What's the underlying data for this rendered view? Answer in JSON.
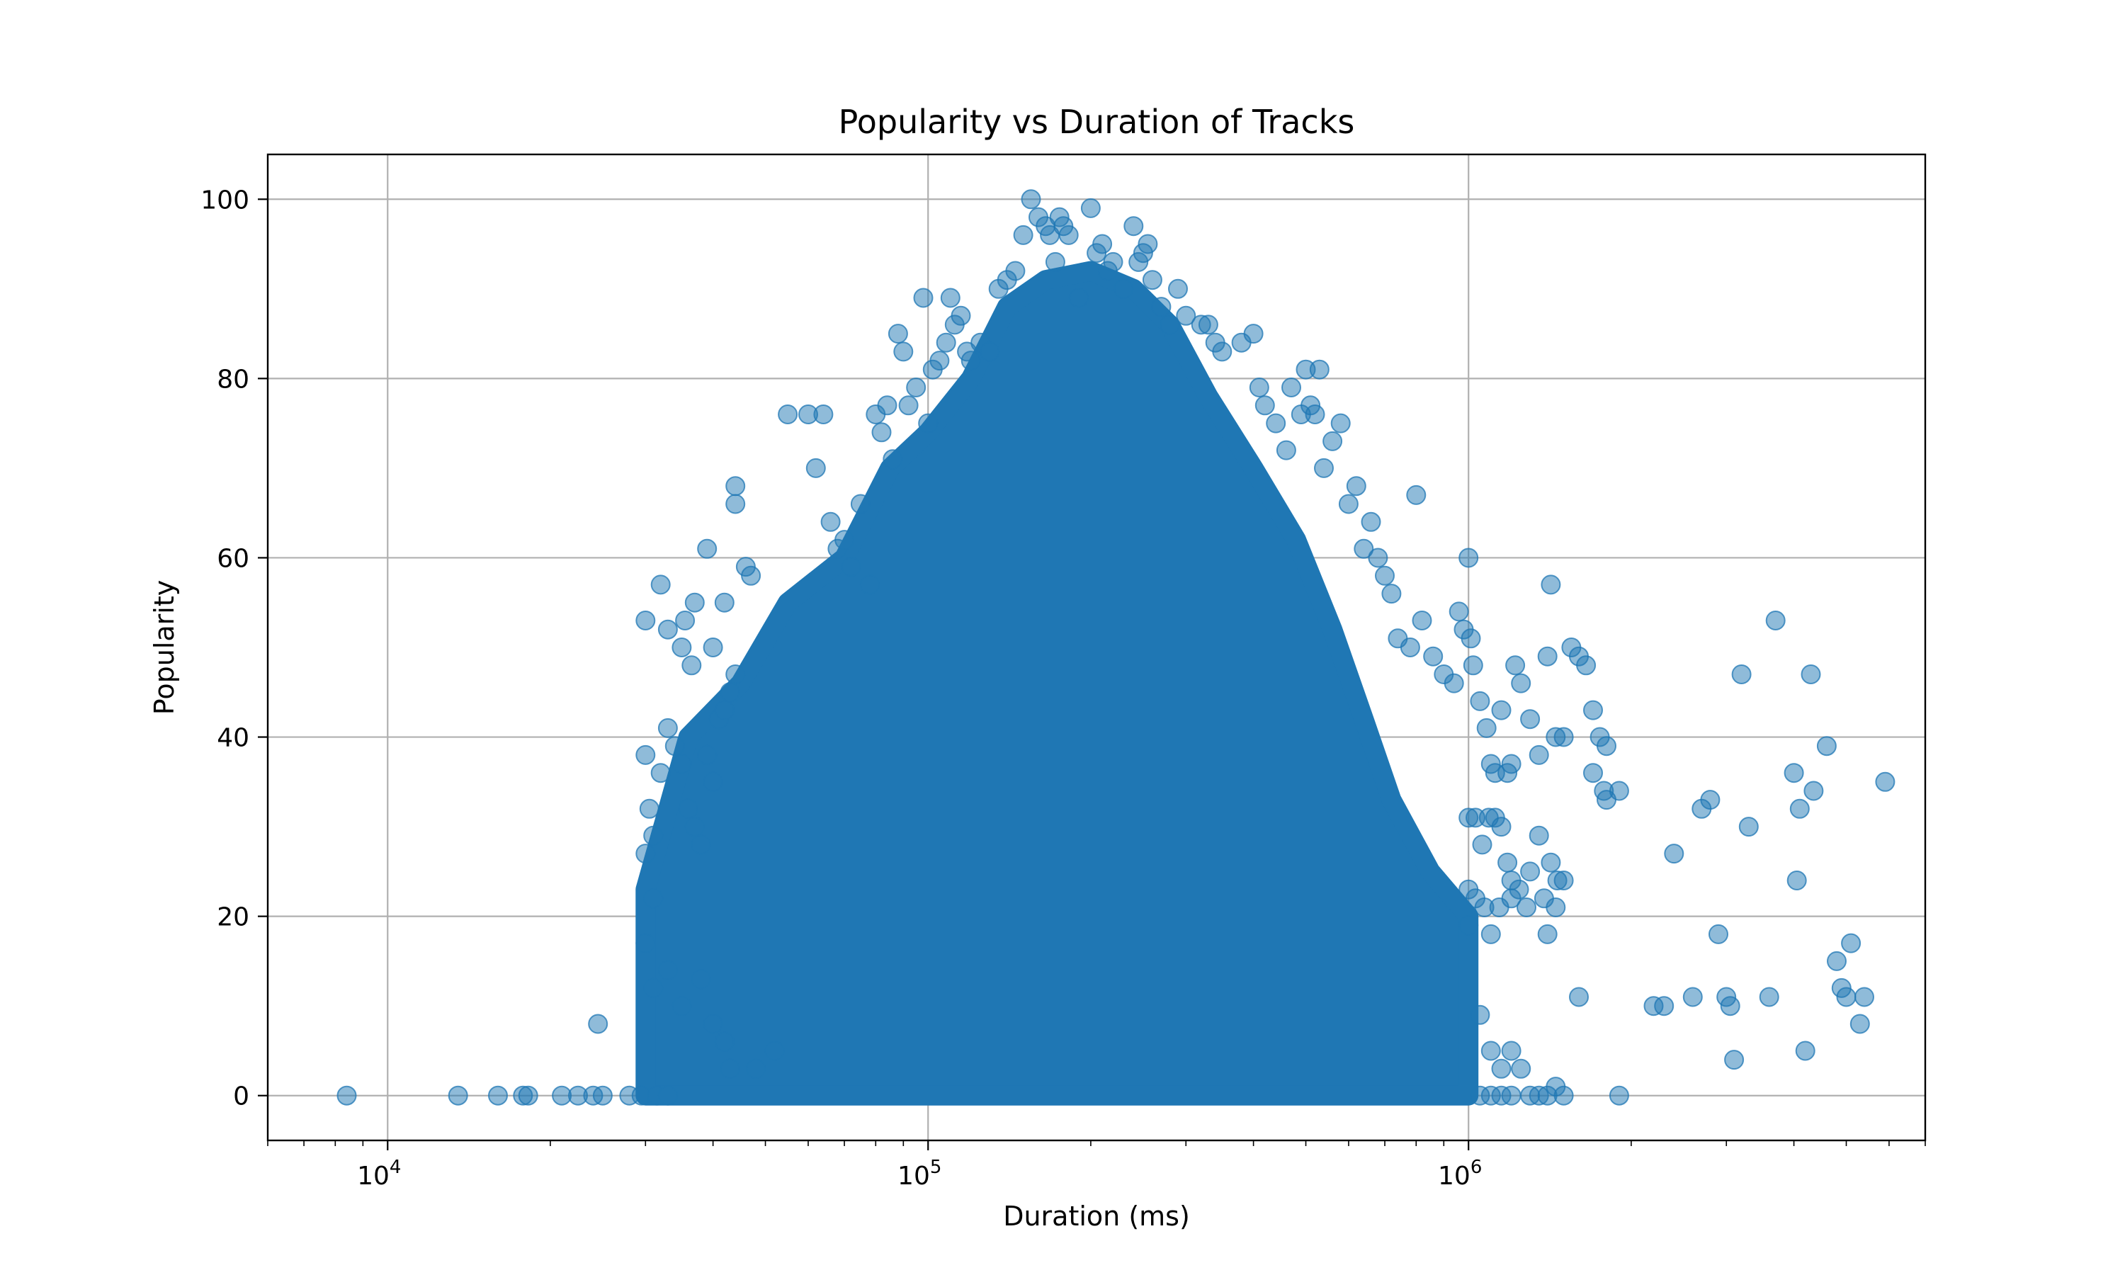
{
  "chart_data": {
    "type": "scatter",
    "title": "Popularity vs Duration of Tracks",
    "xlabel": "Duration (ms)",
    "ylabel": "Popularity",
    "x_scale": "log",
    "xlim": [
      6000,
      7000000
    ],
    "ylim": [
      -5,
      105
    ],
    "grid": true,
    "marker_color": "#1f77b4",
    "marker_alpha": 0.5,
    "x_tick_labels": [
      {
        "base": "10",
        "exp": "4",
        "value": 10000
      },
      {
        "base": "10",
        "exp": "5",
        "value": 100000
      },
      {
        "base": "10",
        "exp": "6",
        "value": 1000000
      }
    ],
    "y_ticks": [
      0,
      20,
      40,
      60,
      80,
      100
    ],
    "y_tick_labels": [
      "0",
      "20",
      "40",
      "60",
      "80",
      "100"
    ],
    "dense_region": {
      "description_points": [
        [
          30000,
          0
        ],
        [
          30000,
          23
        ],
        [
          36000,
          40
        ],
        [
          45000,
          46
        ],
        [
          55000,
          55
        ],
        [
          70000,
          60
        ],
        [
          85000,
          70
        ],
        [
          100000,
          74
        ],
        [
          120000,
          80
        ],
        [
          140000,
          88
        ],
        [
          165000,
          91
        ],
        [
          200000,
          92
        ],
        [
          240000,
          90
        ],
        [
          280000,
          86
        ],
        [
          330000,
          78
        ],
        [
          400000,
          70
        ],
        [
          480000,
          62
        ],
        [
          560000,
          52
        ],
        [
          640000,
          42
        ],
        [
          720000,
          33
        ],
        [
          850000,
          25
        ],
        [
          1000000,
          20
        ],
        [
          1000000,
          0
        ]
      ]
    },
    "points": [
      [
        8400,
        0
      ],
      [
        13500,
        0
      ],
      [
        16000,
        0
      ],
      [
        17800,
        0
      ],
      [
        18200,
        0
      ],
      [
        21000,
        0
      ],
      [
        22500,
        0
      ],
      [
        24000,
        0
      ],
      [
        25000,
        0
      ],
      [
        24500,
        8
      ],
      [
        28000,
        0
      ],
      [
        29500,
        0
      ],
      [
        31500,
        0
      ],
      [
        33000,
        0
      ],
      [
        30000,
        53
      ],
      [
        32000,
        57
      ],
      [
        33000,
        52
      ],
      [
        35000,
        50
      ],
      [
        35500,
        53
      ],
      [
        36500,
        48
      ],
      [
        37000,
        55
      ],
      [
        39000,
        61
      ],
      [
        40000,
        50
      ],
      [
        42000,
        55
      ],
      [
        44000,
        68
      ],
      [
        44000,
        66
      ],
      [
        46000,
        59
      ],
      [
        47000,
        58
      ],
      [
        30000,
        38
      ],
      [
        30500,
        32
      ],
      [
        31000,
        29
      ],
      [
        30000,
        27
      ],
      [
        31000,
        22
      ],
      [
        32000,
        36
      ],
      [
        33000,
        41
      ],
      [
        34000,
        39
      ],
      [
        35000,
        37
      ],
      [
        36000,
        32
      ],
      [
        37000,
        30
      ],
      [
        38000,
        28
      ],
      [
        39000,
        38
      ],
      [
        40000,
        35
      ],
      [
        41000,
        42
      ],
      [
        42000,
        43
      ],
      [
        43000,
        45
      ],
      [
        44000,
        47
      ],
      [
        30000,
        17
      ],
      [
        31000,
        12
      ],
      [
        33000,
        14
      ],
      [
        35000,
        10
      ],
      [
        38000,
        13
      ],
      [
        40000,
        8
      ],
      [
        42000,
        6
      ],
      [
        43000,
        3
      ],
      [
        48000,
        3
      ],
      [
        52000,
        5
      ],
      [
        55000,
        76
      ],
      [
        60000,
        76
      ],
      [
        62000,
        70
      ],
      [
        64000,
        76
      ],
      [
        66000,
        64
      ],
      [
        68000,
        61
      ],
      [
        70000,
        62
      ],
      [
        72000,
        59
      ],
      [
        75000,
        66
      ],
      [
        78000,
        57
      ],
      [
        80000,
        76
      ],
      [
        82000,
        74
      ],
      [
        84000,
        77
      ],
      [
        86000,
        71
      ],
      [
        88000,
        85
      ],
      [
        90000,
        83
      ],
      [
        92000,
        77
      ],
      [
        95000,
        79
      ],
      [
        98000,
        89
      ],
      [
        100000,
        75
      ],
      [
        102000,
        81
      ],
      [
        105000,
        82
      ],
      [
        108000,
        84
      ],
      [
        110000,
        89
      ],
      [
        112000,
        86
      ],
      [
        115000,
        87
      ],
      [
        118000,
        83
      ],
      [
        120000,
        82
      ],
      [
        125000,
        84
      ],
      [
        130000,
        83
      ],
      [
        135000,
        90
      ],
      [
        140000,
        91
      ],
      [
        145000,
        92
      ],
      [
        150000,
        96
      ],
      [
        155000,
        100
      ],
      [
        160000,
        98
      ],
      [
        165000,
        97
      ],
      [
        168000,
        96
      ],
      [
        172000,
        93
      ],
      [
        175000,
        98
      ],
      [
        178000,
        97
      ],
      [
        182000,
        96
      ],
      [
        190000,
        89
      ],
      [
        200000,
        99
      ],
      [
        205000,
        94
      ],
      [
        210000,
        95
      ],
      [
        215000,
        92
      ],
      [
        220000,
        93
      ],
      [
        230000,
        90
      ],
      [
        240000,
        97
      ],
      [
        245000,
        93
      ],
      [
        250000,
        94
      ],
      [
        255000,
        95
      ],
      [
        260000,
        91
      ],
      [
        270000,
        88
      ],
      [
        280000,
        86
      ],
      [
        290000,
        90
      ],
      [
        300000,
        87
      ],
      [
        320000,
        86
      ],
      [
        330000,
        86
      ],
      [
        340000,
        84
      ],
      [
        350000,
        83
      ],
      [
        380000,
        84
      ],
      [
        400000,
        85
      ],
      [
        410000,
        79
      ],
      [
        420000,
        77
      ],
      [
        440000,
        75
      ],
      [
        460000,
        72
      ],
      [
        470000,
        79
      ],
      [
        490000,
        76
      ],
      [
        500000,
        81
      ],
      [
        510000,
        77
      ],
      [
        520000,
        76
      ],
      [
        530000,
        81
      ],
      [
        540000,
        70
      ],
      [
        560000,
        73
      ],
      [
        580000,
        75
      ],
      [
        600000,
        66
      ],
      [
        620000,
        68
      ],
      [
        640000,
        61
      ],
      [
        660000,
        64
      ],
      [
        680000,
        60
      ],
      [
        700000,
        58
      ],
      [
        720000,
        56
      ],
      [
        740000,
        51
      ],
      [
        780000,
        50
      ],
      [
        800000,
        67
      ],
      [
        820000,
        53
      ],
      [
        860000,
        49
      ],
      [
        900000,
        47
      ],
      [
        940000,
        46
      ],
      [
        960000,
        54
      ],
      [
        980000,
        52
      ],
      [
        1000000,
        60
      ],
      [
        1010000,
        51
      ],
      [
        1020000,
        48
      ],
      [
        1050000,
        44
      ],
      [
        1080000,
        41
      ],
      [
        1100000,
        37
      ],
      [
        1120000,
        36
      ],
      [
        1150000,
        43
      ],
      [
        1180000,
        36
      ],
      [
        1200000,
        37
      ],
      [
        1220000,
        48
      ],
      [
        1250000,
        46
      ],
      [
        1300000,
        42
      ],
      [
        1350000,
        38
      ],
      [
        1400000,
        49
      ],
      [
        1420000,
        57
      ],
      [
        1450000,
        40
      ],
      [
        1500000,
        40
      ],
      [
        1550000,
        50
      ],
      [
        1600000,
        49
      ],
      [
        1650000,
        48
      ],
      [
        1700000,
        43
      ],
      [
        1750000,
        40
      ],
      [
        1800000,
        39
      ],
      [
        1700000,
        36
      ],
      [
        1780000,
        34
      ],
      [
        1800000,
        33
      ],
      [
        1900000,
        34
      ],
      [
        1000000,
        31
      ],
      [
        1030000,
        31
      ],
      [
        1060000,
        28
      ],
      [
        1090000,
        31
      ],
      [
        1120000,
        31
      ],
      [
        1150000,
        30
      ],
      [
        1180000,
        26
      ],
      [
        1200000,
        24
      ],
      [
        1240000,
        23
      ],
      [
        1280000,
        21
      ],
      [
        1300000,
        25
      ],
      [
        1350000,
        29
      ],
      [
        1380000,
        22
      ],
      [
        1420000,
        26
      ],
      [
        1460000,
        24
      ],
      [
        1500000,
        24
      ],
      [
        1000000,
        23
      ],
      [
        1030000,
        22
      ],
      [
        1070000,
        21
      ],
      [
        1100000,
        18
      ],
      [
        1140000,
        21
      ],
      [
        1200000,
        22
      ],
      [
        1400000,
        18
      ],
      [
        1450000,
        21
      ],
      [
        1000000,
        19
      ],
      [
        1050000,
        9
      ],
      [
        1100000,
        5
      ],
      [
        1150000,
        3
      ],
      [
        1200000,
        5
      ],
      [
        1250000,
        3
      ],
      [
        1300000,
        0
      ],
      [
        1350000,
        0
      ],
      [
        1400000,
        0
      ],
      [
        1450000,
        1
      ],
      [
        1500000,
        0
      ],
      [
        1600000,
        11
      ],
      [
        1900000,
        0
      ],
      [
        1050000,
        0
      ],
      [
        1100000,
        0
      ],
      [
        1150000,
        0
      ],
      [
        1200000,
        0
      ],
      [
        2200000,
        10
      ],
      [
        2300000,
        10
      ],
      [
        2400000,
        27
      ],
      [
        2600000,
        11
      ],
      [
        2700000,
        32
      ],
      [
        2800000,
        33
      ],
      [
        2900000,
        18
      ],
      [
        3000000,
        11
      ],
      [
        3050000,
        10
      ],
      [
        3100000,
        4
      ],
      [
        3200000,
        47
      ],
      [
        3300000,
        30
      ],
      [
        3600000,
        11
      ],
      [
        3700000,
        53
      ],
      [
        4000000,
        36
      ],
      [
        4050000,
        24
      ],
      [
        4100000,
        32
      ],
      [
        4200000,
        5
      ],
      [
        4300000,
        47
      ],
      [
        4350000,
        34
      ],
      [
        4600000,
        39
      ],
      [
        4800000,
        15
      ],
      [
        4900000,
        12
      ],
      [
        5000000,
        11
      ],
      [
        5100000,
        17
      ],
      [
        5300000,
        8
      ],
      [
        5400000,
        11
      ],
      [
        5900000,
        35
      ]
    ]
  }
}
